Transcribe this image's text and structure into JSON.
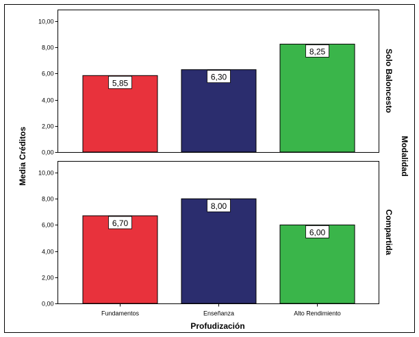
{
  "chart_data": {
    "type": "bar",
    "title": "",
    "xlabel": "Profudización",
    "ylabel": "Media Créditos",
    "facet_label": "Modalidad",
    "categories": [
      "Fundamentos",
      "Enseñanza",
      "Alto Rendimiento"
    ],
    "colors": [
      "#e8323c",
      "#2b2d6e",
      "#3ab54a"
    ],
    "ylim": [
      0,
      10
    ],
    "yticks": [
      "0,00",
      "2,00",
      "4,00",
      "6,00",
      "8,00",
      "10,00"
    ],
    "grid": false,
    "panels": [
      {
        "name": "Solo Baloncesto",
        "values": [
          5.85,
          6.3,
          8.25
        ],
        "labels": [
          "5,85",
          "6,30",
          "8,25"
        ]
      },
      {
        "name": "Compartida",
        "values": [
          6.7,
          8.0,
          6.0
        ],
        "labels": [
          "6,70",
          "8,00",
          "6,00"
        ]
      }
    ]
  }
}
